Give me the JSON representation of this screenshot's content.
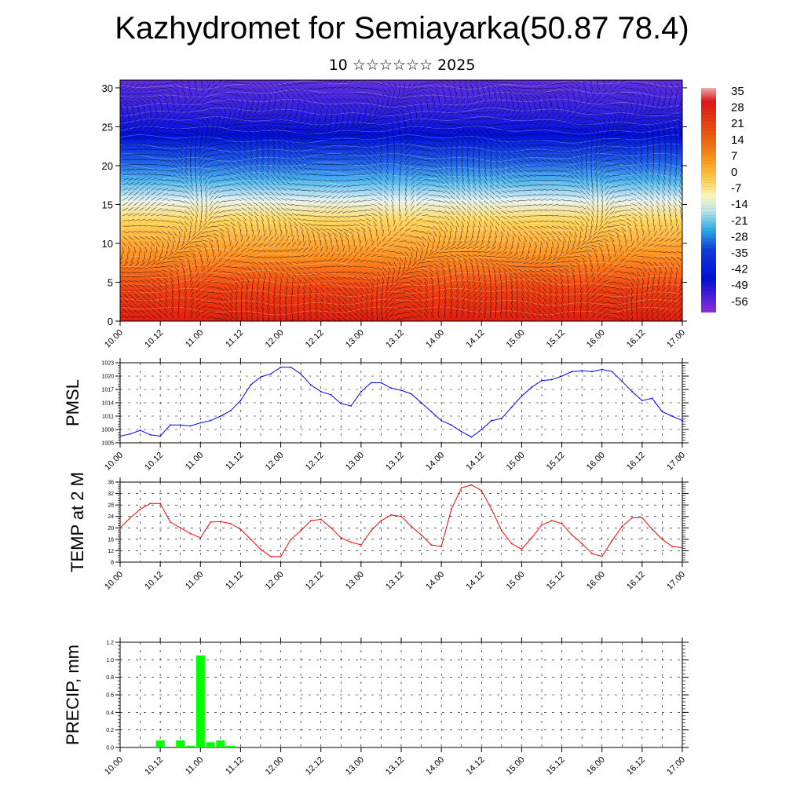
{
  "header": {
    "title": "Kazhydromet for Semiayarka(50.87 78.4)",
    "subtitle": "10 ☆☆☆☆☆☆ 2025"
  },
  "chart_data": [
    {
      "type": "heatmap",
      "title": "",
      "x_tick_labels": [
        "10.00",
        "10.12",
        "11.00",
        "11.12",
        "12.00",
        "12.12",
        "13.00",
        "13.12",
        "14.00",
        "14.12",
        "15.00",
        "15.12",
        "16.00",
        "16.12",
        "17.00"
      ],
      "y_ticks": [
        0,
        5,
        10,
        15,
        20,
        25,
        30
      ],
      "ylim": [
        0,
        31
      ],
      "colorbar": {
        "labels": [
          "35",
          "28",
          "21",
          "14",
          "7",
          "0",
          "-7",
          "-14",
          "-21",
          "-28",
          "-35",
          "-42",
          "-49",
          "-56"
        ],
        "stops": [
          "#f4b0b0",
          "#e01818",
          "#f06010",
          "#ffa020",
          "#ffd860",
          "#fffac0",
          "#c0e8f0",
          "#30b0e8",
          "#1040e0",
          "#0010d8",
          "#5020e0",
          "#9030e0"
        ]
      },
      "overlay": "wind arrows and temperature contours",
      "grid": false
    },
    {
      "type": "line",
      "ylabel": "PMSL",
      "color": "#0000ff",
      "ylim": [
        1005,
        1023
      ],
      "y_ticks": [
        "1005",
        "1008",
        "1011",
        "1014",
        "1017",
        "1020",
        "1023"
      ],
      "x_tick_labels": [
        "10.00",
        "10.12",
        "11.00",
        "11.12",
        "12.00",
        "12.12",
        "13.00",
        "13.12",
        "14.00",
        "14.12",
        "15.00",
        "15.12",
        "16.00",
        "16.12",
        "17.00"
      ],
      "x": [
        0,
        3,
        6,
        9,
        12,
        15,
        18,
        21,
        24,
        27,
        30,
        33,
        36,
        39,
        42,
        45,
        48,
        51,
        54,
        57,
        60,
        63,
        66,
        69,
        72,
        75,
        78,
        81,
        84,
        87,
        90,
        93,
        96,
        99,
        102,
        105,
        108,
        111,
        114,
        117,
        120,
        123,
        126,
        129,
        132,
        135,
        138,
        141,
        144,
        147,
        150,
        153,
        156,
        159,
        162,
        165,
        168
      ],
      "values": [
        1006.5,
        1007.0,
        1007.8,
        1006.8,
        1006.5,
        1009.0,
        1009.0,
        1008.8,
        1009.5,
        1010.0,
        1011.0,
        1012.2,
        1014.5,
        1018.0,
        1019.8,
        1020.5,
        1022.0,
        1022.0,
        1020.5,
        1018.0,
        1016.5,
        1015.8,
        1013.8,
        1013.3,
        1016.5,
        1018.5,
        1018.5,
        1017.3,
        1016.8,
        1016.0,
        1014.0,
        1012.0,
        1010.0,
        1009.0,
        1007.5,
        1006.3,
        1008.0,
        1010.0,
        1010.5,
        1013.0,
        1015.5,
        1017.5,
        1019.0,
        1019.2,
        1020.0,
        1021.0,
        1021.2,
        1021.0,
        1021.5,
        1021.0,
        1018.8,
        1016.5,
        1014.5,
        1015.0,
        1012.0,
        1011.0,
        1010.0
      ],
      "grid": true
    },
    {
      "type": "line",
      "ylabel": "TEMP at 2 M",
      "color": "#ff0000",
      "ylim": [
        8,
        36
      ],
      "y_ticks": [
        "8",
        "12",
        "16",
        "20",
        "24",
        "28",
        "32",
        "36"
      ],
      "x_tick_labels": [
        "10.00",
        "10.12",
        "11.00",
        "11.12",
        "12.00",
        "12.12",
        "13.00",
        "13.12",
        "14.00",
        "14.12",
        "15.00",
        "15.12",
        "16.00",
        "16.12",
        "17.00"
      ],
      "x": [
        0,
        3,
        6,
        9,
        12,
        15,
        18,
        21,
        24,
        27,
        30,
        33,
        36,
        39,
        42,
        45,
        48,
        51,
        54,
        57,
        60,
        63,
        66,
        69,
        72,
        75,
        78,
        81,
        84,
        87,
        90,
        93,
        96,
        99,
        102,
        105,
        108,
        111,
        114,
        117,
        120,
        123,
        126,
        129,
        132,
        135,
        138,
        141,
        144,
        147,
        150,
        153,
        156,
        159,
        162,
        165,
        168
      ],
      "values": [
        20.0,
        23.5,
        26.5,
        28.5,
        28.5,
        22.0,
        20.0,
        18.0,
        16.5,
        22.0,
        22.2,
        21.5,
        19.5,
        16.0,
        12.5,
        10.0,
        10.0,
        16.0,
        19.0,
        22.5,
        23.0,
        20.0,
        16.5,
        15.0,
        14.0,
        19.0,
        22.5,
        24.5,
        24.0,
        20.5,
        17.5,
        14.0,
        13.5,
        26.5,
        34.0,
        35.0,
        33.0,
        26.5,
        19.0,
        14.5,
        12.5,
        16.5,
        21.0,
        22.5,
        21.5,
        17.5,
        14.5,
        11.0,
        10.0,
        15.5,
        20.5,
        23.5,
        23.5,
        19.5,
        16.0,
        13.5,
        13.0
      ],
      "grid": true
    },
    {
      "type": "bar",
      "ylabel": "PRECIP, mm",
      "color": "#00ff00",
      "ylim": [
        0,
        1.2
      ],
      "y_ticks": [
        "0.0",
        "0.2",
        "0.4",
        "0.6",
        "0.8",
        "1.0",
        "1.2"
      ],
      "x_tick_labels": [
        "10.00",
        "10.12",
        "11.00",
        "11.12",
        "12.00",
        "12.12",
        "13.00",
        "13.12",
        "14.00",
        "14.12",
        "15.00",
        "15.12",
        "16.00",
        "16.12",
        "17.00"
      ],
      "x": [
        12,
        18,
        21,
        24,
        27,
        30,
        33
      ],
      "values": [
        0.08,
        0.08,
        0.02,
        1.05,
        0.06,
        0.08,
        0.02
      ],
      "grid": true
    }
  ]
}
